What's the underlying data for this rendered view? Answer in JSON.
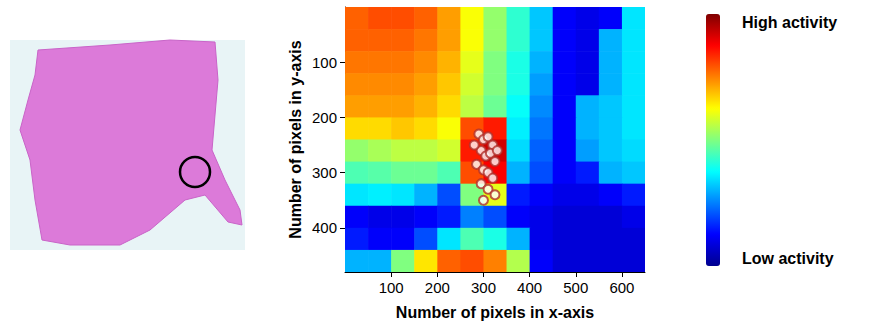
{
  "chart_data": {
    "type": "heatmap",
    "xlabel": "Number of pixels in x-axis",
    "ylabel": "Number of pixels in y-axis",
    "xlim": [
      0,
      650
    ],
    "ylim": [
      480,
      0
    ],
    "xticks": [
      100,
      200,
      300,
      400,
      500,
      600
    ],
    "yticks": [
      100,
      200,
      300,
      400
    ],
    "cells": {
      "x_edges": [
        0,
        50,
        100,
        150,
        200,
        250,
        300,
        350,
        400,
        450,
        500,
        550,
        600,
        650
      ],
      "y_edges": [
        0,
        40,
        80,
        120,
        160,
        200,
        240,
        280,
        320,
        360,
        400,
        440,
        480
      ],
      "values": [
        [
          0.78,
          0.8,
          0.8,
          0.78,
          0.72,
          0.62,
          0.52,
          0.42,
          0.32,
          0.12,
          0.1,
          0.12,
          0.35
        ],
        [
          0.78,
          0.78,
          0.78,
          0.76,
          0.72,
          0.62,
          0.52,
          0.42,
          0.32,
          0.12,
          0.1,
          0.3,
          0.35
        ],
        [
          0.76,
          0.76,
          0.76,
          0.74,
          0.7,
          0.6,
          0.5,
          0.4,
          0.3,
          0.12,
          0.1,
          0.3,
          0.35
        ],
        [
          0.74,
          0.74,
          0.74,
          0.72,
          0.68,
          0.58,
          0.5,
          0.4,
          0.28,
          0.12,
          0.1,
          0.3,
          0.35
        ],
        [
          0.72,
          0.72,
          0.72,
          0.7,
          0.66,
          0.56,
          0.48,
          0.38,
          0.26,
          0.12,
          0.3,
          0.32,
          0.35
        ],
        [
          0.66,
          0.66,
          0.68,
          0.66,
          0.62,
          0.8,
          0.85,
          0.36,
          0.24,
          0.12,
          0.3,
          0.32,
          0.35
        ],
        [
          0.52,
          0.54,
          0.56,
          0.56,
          0.58,
          0.85,
          0.92,
          0.34,
          0.22,
          0.12,
          0.28,
          0.32,
          0.34
        ],
        [
          0.45,
          0.46,
          0.48,
          0.48,
          0.45,
          0.8,
          0.88,
          0.3,
          0.2,
          0.12,
          0.15,
          0.3,
          0.32
        ],
        [
          0.35,
          0.36,
          0.35,
          0.3,
          0.2,
          0.5,
          0.6,
          0.15,
          0.12,
          0.1,
          0.1,
          0.12,
          0.15
        ],
        [
          0.12,
          0.1,
          0.1,
          0.12,
          0.15,
          0.25,
          0.2,
          0.12,
          0.1,
          0.08,
          0.08,
          0.08,
          0.1
        ],
        [
          0.15,
          0.12,
          0.12,
          0.2,
          0.35,
          0.45,
          0.4,
          0.3,
          0.1,
          0.08,
          0.08,
          0.08,
          0.08
        ],
        [
          0.3,
          0.3,
          0.5,
          0.65,
          0.78,
          0.8,
          0.75,
          0.55,
          0.12,
          0.08,
          0.08,
          0.08,
          0.08
        ]
      ]
    },
    "colorbar": {
      "range": [
        0,
        1
      ],
      "high_label": "High activity",
      "low_label": "Low activity"
    },
    "markers": {
      "x": [
        290,
        300,
        310,
        320,
        295,
        305,
        315,
        325,
        285,
        300,
        310,
        320,
        295,
        330,
        280,
        310,
        325,
        300
      ],
      "y": [
        230,
        240,
        235,
        250,
        260,
        270,
        265,
        280,
        285,
        295,
        300,
        310,
        320,
        260,
        250,
        330,
        340,
        350
      ],
      "color": "#b0302a",
      "marker": "open_circle"
    }
  }
}
